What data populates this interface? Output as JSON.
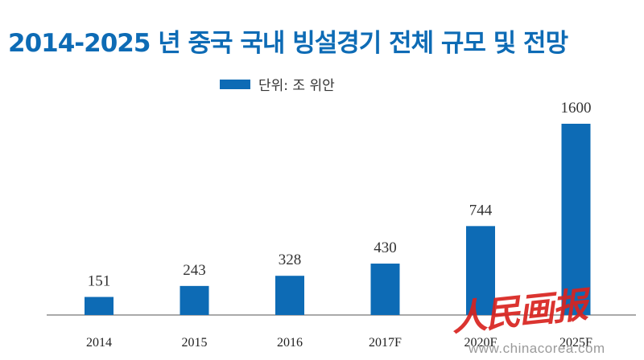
{
  "chart_data": {
    "type": "bar",
    "title": "2014-2025 년 중국 국내 빙설경기 전체 규모 및 전망",
    "legend": {
      "label": "단위: 조 위안",
      "placement": "top"
    },
    "categories": [
      "2014",
      "2015",
      "2016",
      "2017F",
      "2020F",
      "2025F"
    ],
    "series": [
      {
        "values": [
          151,
          243,
          328,
          430,
          744,
          1600
        ]
      }
    ],
    "ylim": [
      0,
      1600
    ],
    "grid": false,
    "bar_color": "#0d6bb5"
  },
  "watermark": {
    "logo_text": "人民画报",
    "url": "www.chinacorea.com",
    "color": "#d8231f"
  }
}
